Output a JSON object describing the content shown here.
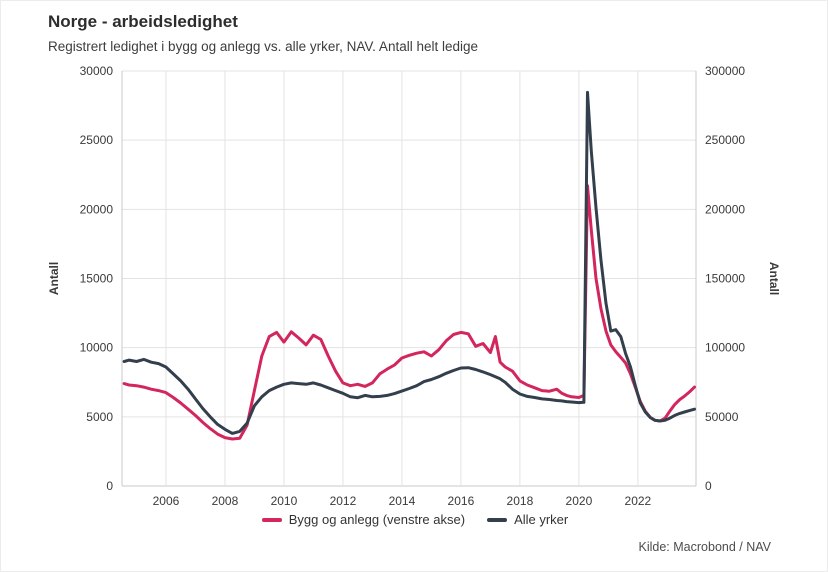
{
  "header": {
    "title": "Norge - arbeidsledighet",
    "subtitle": "Registrert ledighet i bygg og anlegg vs. alle yrker, NAV. Antall helt ledige"
  },
  "footer": {
    "source": "Kilde: Macrobond / NAV"
  },
  "chart_data": {
    "type": "line",
    "title": "Norge - arbeidsledighet",
    "subtitle": "Registrert ledighet i bygg og anlegg vs. alle yrker, NAV. Antall helt ledige",
    "source": "Kilde: Macrobond / NAV",
    "grid": true,
    "legend_position": "bottom",
    "x_domain": [
      2004.51,
      2023.97
    ],
    "x_ticks": [
      2006,
      2008,
      2010,
      2012,
      2014,
      2016,
      2018,
      2020,
      2022
    ],
    "left_axis": {
      "label": "Antall",
      "min": 0,
      "max": 30000,
      "ticks": [
        0,
        5000,
        10000,
        15000,
        20000,
        25000,
        30000
      ]
    },
    "right_axis": {
      "label": "Antall",
      "min": 0,
      "max": 300000,
      "ticks": [
        0,
        50000,
        100000,
        150000,
        200000,
        250000,
        300000
      ]
    },
    "x": [
      2004.58,
      2004.75,
      2005.0,
      2005.25,
      2005.5,
      2005.75,
      2006.0,
      2006.25,
      2006.5,
      2006.75,
      2007.0,
      2007.25,
      2007.5,
      2007.75,
      2008.0,
      2008.25,
      2008.5,
      2008.75,
      2009.0,
      2009.25,
      2009.5,
      2009.75,
      2010.0,
      2010.25,
      2010.5,
      2010.75,
      2011.0,
      2011.25,
      2011.5,
      2011.75,
      2012.0,
      2012.25,
      2012.5,
      2012.75,
      2013.0,
      2013.25,
      2013.5,
      2013.75,
      2014.0,
      2014.25,
      2014.5,
      2014.75,
      2015.0,
      2015.25,
      2015.5,
      2015.75,
      2016.0,
      2016.25,
      2016.5,
      2016.75,
      2017.0,
      2017.17,
      2017.33,
      2017.5,
      2017.75,
      2018.0,
      2018.25,
      2018.5,
      2018.75,
      2019.0,
      2019.25,
      2019.42,
      2019.58,
      2019.75,
      2020.0,
      2020.17,
      2020.29,
      2020.42,
      2020.58,
      2020.75,
      2020.92,
      2021.08,
      2021.25,
      2021.42,
      2021.58,
      2021.75,
      2021.92,
      2022.08,
      2022.25,
      2022.42,
      2022.58,
      2022.75,
      2022.92,
      2023.08,
      2023.25,
      2023.42,
      2023.58,
      2023.75,
      2023.92
    ],
    "series": [
      {
        "name": "Bygg og anlegg (venstre akse)",
        "axis": "left",
        "color": "#d2265c",
        "values": [
          7400,
          7300,
          7250,
          7150,
          7000,
          6900,
          6750,
          6400,
          6000,
          5550,
          5100,
          4600,
          4150,
          3750,
          3500,
          3400,
          3450,
          4400,
          6900,
          9400,
          10800,
          11100,
          10400,
          11150,
          10700,
          10200,
          10900,
          10600,
          9400,
          8300,
          7450,
          7250,
          7350,
          7200,
          7450,
          8100,
          8450,
          8750,
          9250,
          9450,
          9600,
          9700,
          9400,
          9850,
          10500,
          10950,
          11100,
          11000,
          10100,
          10300,
          9650,
          10800,
          8950,
          8600,
          8300,
          7600,
          7300,
          7100,
          6900,
          6850,
          7000,
          6700,
          6550,
          6450,
          6400,
          6550,
          21700,
          18500,
          15000,
          12800,
          11200,
          10200,
          9700,
          9300,
          8900,
          8100,
          7100,
          6100,
          5400,
          4950,
          4750,
          4700,
          4900,
          5400,
          5900,
          6250,
          6500,
          6800,
          7150
        ]
      },
      {
        "name": "Alle yrker",
        "axis": "right",
        "color": "#333f4c",
        "values": [
          90000,
          91000,
          90000,
          91500,
          89500,
          88500,
          86000,
          81000,
          76000,
          70000,
          63000,
          56000,
          50000,
          44500,
          41000,
          38000,
          39500,
          45500,
          58000,
          64500,
          69000,
          71500,
          73500,
          74500,
          74000,
          73500,
          74500,
          73000,
          71000,
          69000,
          67000,
          64500,
          63800,
          65500,
          64500,
          64800,
          65500,
          66800,
          68600,
          70500,
          72500,
          75500,
          77000,
          79000,
          81500,
          83500,
          85300,
          85500,
          84200,
          82500,
          80500,
          79000,
          77500,
          75000,
          70000,
          66500,
          64800,
          64000,
          63000,
          62500,
          61800,
          61500,
          61000,
          60700,
          60300,
          60500,
          284500,
          242000,
          201000,
          163000,
          132000,
          112000,
          113000,
          108000,
          96000,
          86000,
          72000,
          60000,
          53500,
          49500,
          47500,
          47000,
          47500,
          49000,
          51000,
          52500,
          53500,
          54500,
          55500
        ]
      }
    ],
    "style": {
      "grid_color": "#e3e3e3",
      "axis_line_color": "#c8c8c8",
      "line_width": 3
    }
  }
}
